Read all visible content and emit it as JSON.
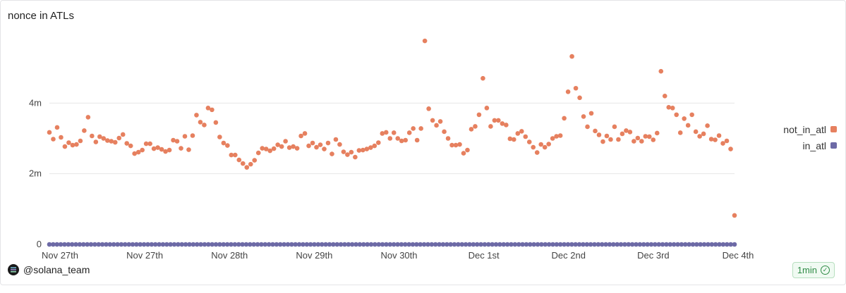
{
  "header": {
    "title": "nonce in ATLs"
  },
  "footer": {
    "handle": "@solana_team",
    "refresh": "1min"
  },
  "colors": {
    "not_in_atl": "#e6805f",
    "in_atl": "#6d6aa6",
    "grid": "#e6e6e6"
  },
  "icons": {
    "logo": "solana-logo-icon",
    "refresh": "check-circle-icon"
  },
  "chart_data": {
    "type": "scatter",
    "title": "nonce in ATLs",
    "xlabel": "",
    "ylabel": "",
    "x_tick_labels": [
      "Nov 27th",
      "Nov 27th",
      "Nov 28th",
      "Nov 29th",
      "Nov 30th",
      "Dec 1st",
      "Dec 2nd",
      "Dec 3rd",
      "Dec 4th"
    ],
    "y_tick_labels": [
      "0",
      "2m",
      "4m"
    ],
    "y_ticks": [
      0,
      2000000,
      4000000
    ],
    "ylim": [
      0,
      6000000
    ],
    "grid": "horizontal",
    "legend_position": "right",
    "series": [
      {
        "name": "not_in_atl",
        "values": [
          3.17,
          2.98,
          3.31,
          3.03,
          2.77,
          2.88,
          2.81,
          2.83,
          2.93,
          3.22,
          3.6,
          3.07,
          2.9,
          3.05,
          3.0,
          2.94,
          2.92,
          2.89,
          3.01,
          3.11,
          2.86,
          2.79,
          2.57,
          2.61,
          2.67,
          2.85,
          2.85,
          2.71,
          2.74,
          2.69,
          2.63,
          2.67,
          2.95,
          2.92,
          2.72,
          3.06,
          2.68,
          3.08,
          3.66,
          3.46,
          3.38,
          3.86,
          3.81,
          3.45,
          3.04,
          2.87,
          2.8,
          2.53,
          2.53,
          2.39,
          2.29,
          2.18,
          2.27,
          2.38,
          2.59,
          2.72,
          2.7,
          2.65,
          2.71,
          2.82,
          2.77,
          2.92,
          2.74,
          2.77,
          2.72,
          3.07,
          3.14,
          2.79,
          2.87,
          2.75,
          2.82,
          2.7,
          2.87,
          2.56,
          2.97,
          2.83,
          2.62,
          2.54,
          2.61,
          2.47,
          2.66,
          2.67,
          2.7,
          2.74,
          2.79,
          2.88,
          3.14,
          3.17,
          3.0,
          3.16,
          3.0,
          2.93,
          2.95,
          3.16,
          3.28,
          2.95,
          3.28,
          5.76,
          3.84,
          3.51,
          3.37,
          3.48,
          3.19,
          3.0,
          2.81,
          2.81,
          2.83,
          2.58,
          2.67,
          3.26,
          3.34,
          3.67,
          4.7,
          3.86,
          3.34,
          3.51,
          3.51,
          3.42,
          3.38,
          2.99,
          2.97,
          3.14,
          3.2,
          3.05,
          2.9,
          2.75,
          2.6,
          2.83,
          2.75,
          2.84,
          3.0,
          3.06,
          3.08,
          3.57,
          4.32,
          5.32,
          4.42,
          4.15,
          3.62,
          3.33,
          3.71,
          3.21,
          3.1,
          2.91,
          3.07,
          2.97,
          3.33,
          2.97,
          3.13,
          3.22,
          3.18,
          2.92,
          3.01,
          2.92,
          3.06,
          3.05,
          2.96,
          3.15,
          4.9,
          4.2,
          3.88,
          3.86,
          3.67,
          3.16,
          3.56,
          3.37,
          3.67,
          3.19,
          3.06,
          3.13,
          3.36,
          2.98,
          2.96,
          3.08,
          2.86,
          2.93,
          2.7,
          0.82
        ]
      },
      {
        "name": "in_atl",
        "values": [
          0.0,
          0.0,
          0.0,
          0.0,
          0.0,
          0.0,
          0.0,
          0.0,
          0.0,
          0.0,
          0.0,
          0.0,
          0.0,
          0.0,
          0.0,
          0.0,
          0.0,
          0.0,
          0.0,
          0.0,
          0.0,
          0.0,
          0.0,
          0.0,
          0.0,
          0.0,
          0.0,
          0.0,
          0.0,
          0.0,
          0.0,
          0.0,
          0.0,
          0.0,
          0.0,
          0.0,
          0.0,
          0.0,
          0.0,
          0.0,
          0.0,
          0.0,
          0.0,
          0.0,
          0.0,
          0.0,
          0.0,
          0.0,
          0.0,
          0.0,
          0.0,
          0.0,
          0.0,
          0.0,
          0.0,
          0.0,
          0.0,
          0.0,
          0.0,
          0.0,
          0.0,
          0.0,
          0.0,
          0.0,
          0.0,
          0.0,
          0.0,
          0.0,
          0.0,
          0.0,
          0.0,
          0.0,
          0.0,
          0.0,
          0.0,
          0.0,
          0.0,
          0.0,
          0.0,
          0.0,
          0.0,
          0.0,
          0.0,
          0.0,
          0.0,
          0.0,
          0.0,
          0.0,
          0.0,
          0.0,
          0.0,
          0.0,
          0.0,
          0.0,
          0.0,
          0.0,
          0.0,
          0.0,
          0.0,
          0.0,
          0.0,
          0.0,
          0.0,
          0.0,
          0.0,
          0.0,
          0.0,
          0.0,
          0.0,
          0.0,
          0.0,
          0.0,
          0.0,
          0.0,
          0.0,
          0.0,
          0.0,
          0.0,
          0.0,
          0.0,
          0.0,
          0.0,
          0.0,
          0.0,
          0.0,
          0.0,
          0.0,
          0.0,
          0.0,
          0.0,
          0.0,
          0.0,
          0.0,
          0.0,
          0.0,
          0.0,
          0.0,
          0.0,
          0.0,
          0.0,
          0.0,
          0.0,
          0.0,
          0.0,
          0.0,
          0.0,
          0.0,
          0.0,
          0.0,
          0.0,
          0.0,
          0.0,
          0.0,
          0.0,
          0.0,
          0.0,
          0.0,
          0.0,
          0.0,
          0.0,
          0.0,
          0.0,
          0.0,
          0.0,
          0.0,
          0.0,
          0.0,
          0.0,
          0.0,
          0.0,
          0.0,
          0.0,
          0.0,
          0.0,
          0.0,
          0.0,
          0.0,
          0.0,
          0.0,
          0.0,
          0.0,
          0.0
        ]
      }
    ],
    "y_unit_multiplier": 1000000
  }
}
